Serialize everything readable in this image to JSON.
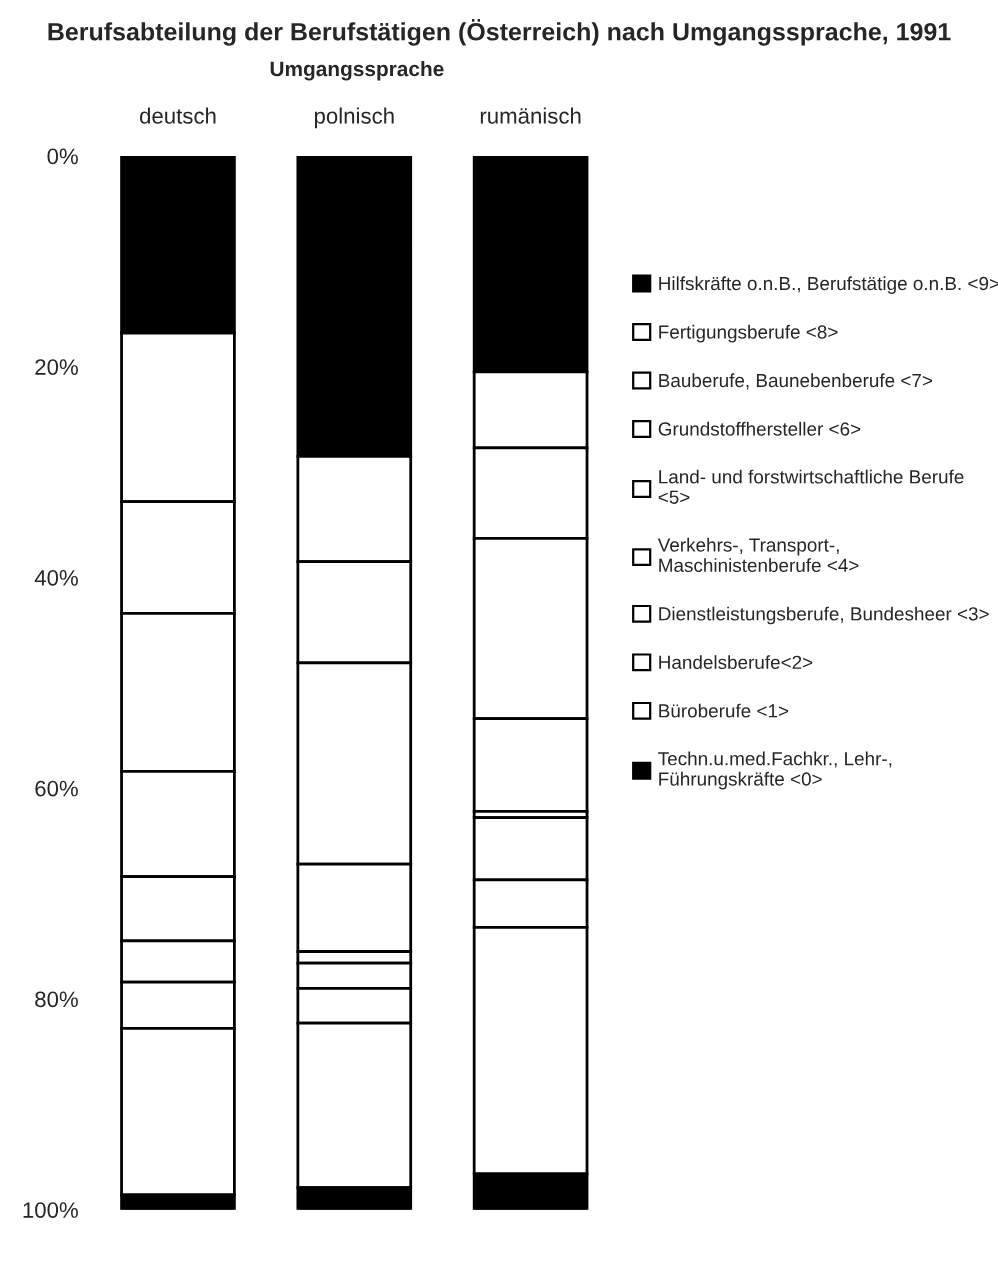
{
  "chart_data": {
    "type": "bar",
    "stacked": true,
    "title": "Berufsabteilung der Berufstätigen (Österreich) nach Umgangssprache, 1991",
    "subtitle": "Umgangssprache",
    "categories": [
      "deutsch",
      "polnisch",
      "rumänisch"
    ],
    "series": [
      {
        "name": "Hilfskräfte o.n.B., Berufstätige o.n.B. <9>",
        "color": "#000000",
        "values": [
          16.8,
          28.5,
          20.5
        ]
      },
      {
        "name": "Fertigungsberufe <8>",
        "color": "#ffffff",
        "values": [
          16.0,
          10.0,
          7.2
        ]
      },
      {
        "name": "Bauberufe, Baunebenberufe <7>",
        "color": "#ffffff",
        "values": [
          10.6,
          9.6,
          8.6
        ]
      },
      {
        "name": "Grundstoffhersteller <6>",
        "color": "#ffffff",
        "values": [
          15.0,
          19.1,
          17.1
        ]
      },
      {
        "name": "Land- und forstwirtschaftliche Berufe\n<5>",
        "color": "#ffffff",
        "values": [
          10.0,
          8.3,
          8.8
        ]
      },
      {
        "name": "Verkehrs-, Transport-,\nMaschinistenberufe <4>",
        "color": "#ffffff",
        "values": [
          6.1,
          1.1,
          0.6
        ]
      },
      {
        "name": "Dienstleistungsberufe, Bundesheer <3>",
        "color": "#ffffff",
        "values": [
          3.9,
          2.4,
          5.9
        ]
      },
      {
        "name": "Handelsberufe<2>",
        "color": "#ffffff",
        "values": [
          4.4,
          3.3,
          4.5
        ]
      },
      {
        "name": "Büroberufe <1>",
        "color": "#ffffff",
        "values": [
          15.8,
          15.6,
          23.4
        ]
      },
      {
        "name": "Techn.u.med.Fachkr., Lehr-,\nFührungskräfte <0>",
        "color": "#000000",
        "values": [
          1.4,
          2.1,
          3.4
        ]
      }
    ],
    "ylim": [
      100,
      0
    ],
    "yticks": [
      {
        "value": 0,
        "label": "0%"
      },
      {
        "value": 20,
        "label": "20%"
      },
      {
        "value": 40,
        "label": "40%"
      },
      {
        "value": 60,
        "label": "60%"
      },
      {
        "value": 80,
        "label": "80%"
      },
      {
        "value": 100,
        "label": "100%"
      }
    ],
    "legend": "right"
  }
}
